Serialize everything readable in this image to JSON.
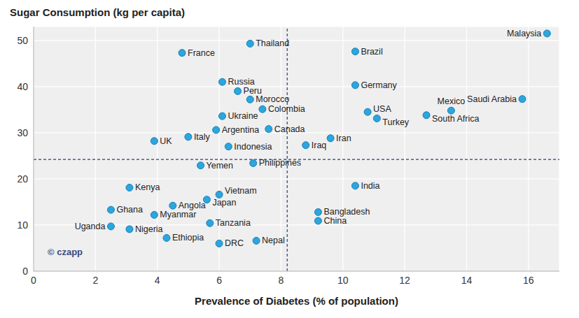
{
  "chart_data": {
    "type": "scatter",
    "title": "Sugar Consumption (kg per capita)",
    "x_label": "Prevalence of Diabetes (% of population)",
    "annotations": [
      "© czapp"
    ],
    "labels": [
      "Malaysia",
      "Thailand",
      "France",
      "Brazil",
      "Russia",
      "Peru",
      "Germany",
      "Morocco",
      "Colombia",
      "Saudi Arabia",
      "Ukraine",
      "USA",
      "Mexico",
      "South Africa",
      "Turkey",
      "Argentina",
      "Canada",
      "Italy",
      "UK",
      "Iran",
      "Indonesia",
      "Iraq",
      "Yemen",
      "Philippines",
      "Kenya",
      "India",
      "Vietnam",
      "Japan",
      "Angola",
      "Ghana",
      "Myanmar",
      "Bangladesh",
      "China",
      "Tanzania",
      "Uganda",
      "Nigeria",
      "Ethiopia",
      "DRC",
      "Nepal"
    ],
    "x": [
      16.6,
      7.0,
      4.8,
      10.4,
      6.1,
      6.6,
      10.4,
      7.0,
      7.4,
      15.8,
      6.1,
      10.8,
      13.5,
      12.7,
      11.1,
      5.9,
      7.6,
      5.0,
      3.9,
      9.6,
      6.3,
      8.8,
      5.4,
      7.1,
      3.1,
      10.4,
      6.0,
      5.6,
      4.5,
      2.5,
      3.9,
      9.2,
      9.2,
      5.7,
      2.5,
      3.1,
      4.3,
      6.0,
      7.2
    ],
    "values": [
      51.5,
      49.3,
      47.3,
      47.6,
      41.0,
      39.0,
      40.3,
      37.2,
      35.1,
      37.3,
      33.6,
      34.5,
      34.8,
      33.8,
      33.1,
      30.6,
      30.8,
      29.1,
      28.2,
      28.8,
      27.0,
      27.3,
      22.9,
      23.4,
      18.1,
      18.5,
      16.6,
      15.5,
      14.2,
      13.3,
      12.2,
      12.8,
      10.9,
      10.4,
      9.7,
      9.1,
      7.2,
      6.0,
      6.6
    ],
    "color": "#2ba6de",
    "xlim": [
      0,
      17
    ],
    "ylim": [
      0,
      53
    ],
    "xticks": [
      0,
      2,
      4,
      6,
      8,
      10,
      12,
      14,
      16
    ],
    "yticks": [
      0,
      10,
      20,
      30,
      40,
      50
    ],
    "grid": true,
    "reference_lines": {
      "x": 8.2,
      "y": 24.2
    }
  }
}
